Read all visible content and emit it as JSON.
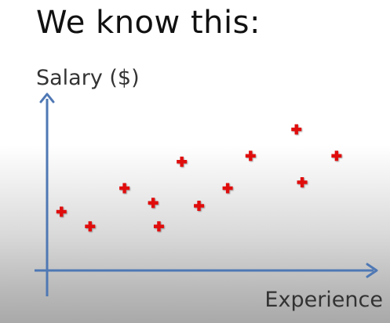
{
  "slide": {
    "title": "We know this:"
  },
  "colors": {
    "axis": "#4f78b4",
    "marker": "#e01010",
    "title": "#111111",
    "axis_label": "#333333"
  },
  "chart_data": {
    "type": "scatter",
    "title": "",
    "xlabel": "Experience",
    "ylabel": "Salary ($)",
    "xlim": [
      0,
      11.5
    ],
    "ylim": [
      0,
      6
    ],
    "grid": false,
    "legend": "none",
    "marker": "plus",
    "series": [
      {
        "x": [
          0.5,
          1.5,
          2.7,
          3.7,
          3.9,
          4.7,
          5.3,
          6.3,
          7.1,
          8.7,
          8.9,
          10.1
        ],
        "y": [
          2.0,
          1.5,
          2.8,
          2.3,
          1.5,
          3.7,
          2.2,
          2.8,
          3.9,
          4.8,
          3.0,
          3.9
        ]
      }
    ]
  }
}
